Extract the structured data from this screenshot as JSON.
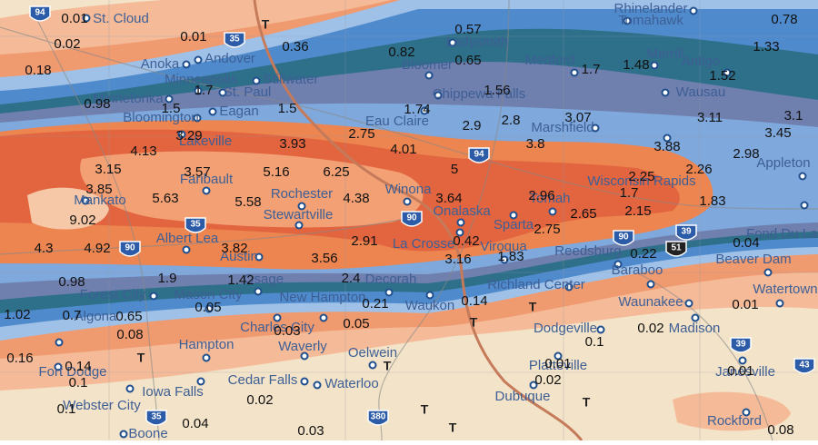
{
  "cities": [
    "St. Cloud",
    "Anoka",
    "Andover",
    "Minneapolis",
    "Stillwater",
    "St. Paul",
    "Minnetonka",
    "Eagan",
    "Bloomington",
    "Lakeville",
    "Ladysmith",
    "Bloomer",
    "Chippewa Falls",
    "Eau Claire",
    "Medford",
    "Merrill",
    "Antigo",
    "Rhinelander",
    "Tomahawk",
    "Wausau",
    "Marshfield",
    "Wisconsin Rapids",
    "Appleton",
    "Fond Du Lac",
    "Winona",
    "Rochester",
    "Faribault",
    "Mankato",
    "Stewartville",
    "Onalaska",
    "Tomah",
    "Sparta",
    "La Crosse",
    "Albert Lea",
    "Austin",
    "Viroqua",
    "Reedsburg",
    "Beaver Dam",
    "Baraboo",
    "Decorah",
    "Richland Center",
    "Waukon",
    "Watertown",
    "Waunakee",
    "Madison",
    "Forest City",
    "Mason City",
    "Osage",
    "New Hampton",
    "Algona",
    "Charles City",
    "Dodgeville",
    "Hampton",
    "Waverly",
    "Oelwein",
    "Fort Dodge",
    "Platteville",
    "Janesville",
    "Webster City",
    "Iowa Falls",
    "Cedar Falls",
    "Waterloo",
    "Dubuque",
    "Rockford",
    "Boone"
  ],
  "amounts": [
    0.01,
    0.02,
    0.01,
    0.36,
    0.18,
    0.82,
    0.57,
    0.65,
    0.78,
    1.33,
    1.7,
    1.48,
    1.52,
    0.98,
    1.7,
    1.5,
    1.5,
    1.56,
    1.74,
    2.9,
    2.8,
    3.07,
    3.11,
    3.1,
    3.45,
    3.29,
    2.75,
    3.93,
    4.01,
    3.8,
    3.88,
    2.98,
    4.13,
    3.15,
    3.57,
    5.16,
    6.25,
    5,
    2.25,
    2.26,
    3.85,
    5.63,
    5.58,
    4.38,
    3.64,
    2.96,
    1.7,
    1.83,
    9.02,
    2.75,
    2.65,
    2.15,
    4.3,
    4.92,
    3.82,
    2.91,
    0.42,
    3.16,
    1.83,
    0.22,
    0.04,
    3.56,
    0.98,
    1.9,
    1.42,
    2.4,
    0.21,
    0.14,
    1.02,
    0.7,
    0.65,
    0.05,
    0.08,
    0.03,
    0.05,
    0.02,
    0.01,
    0.1,
    0.16,
    0.14,
    0.1,
    0.01,
    0.02,
    0.01,
    0.02,
    0.1,
    0.04,
    0.03,
    0.08
  ],
  "highways": [
    "94",
    "35",
    "94",
    "90",
    "35",
    "90",
    "39",
    "51",
    "90",
    "39",
    "43",
    "380",
    "35"
  ],
  "trace_marks": [
    "T",
    "T",
    "T",
    "T",
    "T",
    "T",
    "T",
    "T"
  ]
}
